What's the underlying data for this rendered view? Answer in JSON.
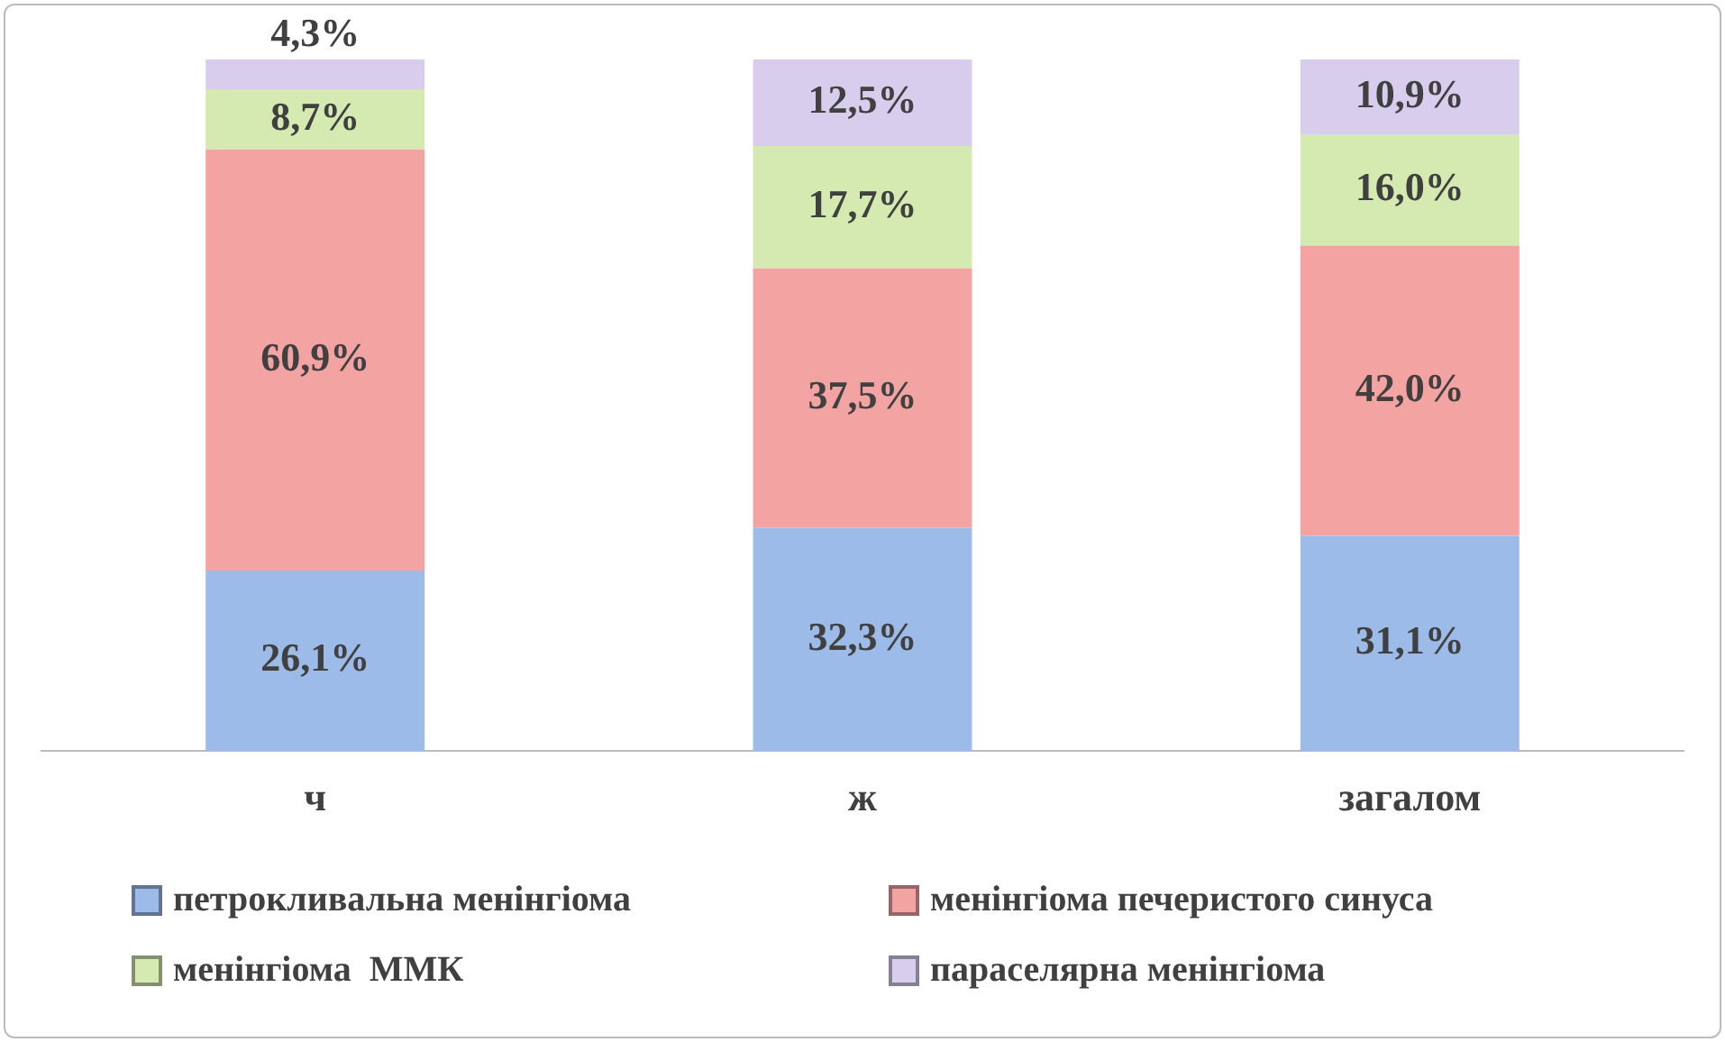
{
  "chart_data": {
    "type": "bar",
    "stacked": true,
    "categories": [
      "ч",
      "ж",
      "загалом"
    ],
    "series": [
      {
        "name": "петрокливальна менінгіома",
        "color": "#9dbbe8",
        "values": [
          26.1,
          32.3,
          31.1
        ],
        "value_labels": [
          "26,1%",
          "32,3%",
          "31,1%"
        ]
      },
      {
        "name": "менінгіома печеристого синуса",
        "color": "#f4a3a3",
        "values": [
          60.9,
          37.5,
          42.0
        ],
        "value_labels": [
          "60,9%",
          "37,5%",
          "42,0%"
        ]
      },
      {
        "name": "менінгіома  ММК",
        "color": "#d4eab0",
        "values": [
          8.7,
          17.7,
          16.0
        ],
        "value_labels": [
          "8,7%",
          "17,7%",
          "16,0%"
        ]
      },
      {
        "name": "параселярна менінгіома",
        "color": "#d9cdee",
        "values": [
          4.3,
          12.5,
          10.9
        ],
        "value_labels": [
          "4,3%",
          "12,5%",
          "10,9%"
        ]
      }
    ],
    "ylim": [
      0,
      100
    ],
    "tick_labels": "x",
    "grid": false,
    "legend": "bottom"
  }
}
